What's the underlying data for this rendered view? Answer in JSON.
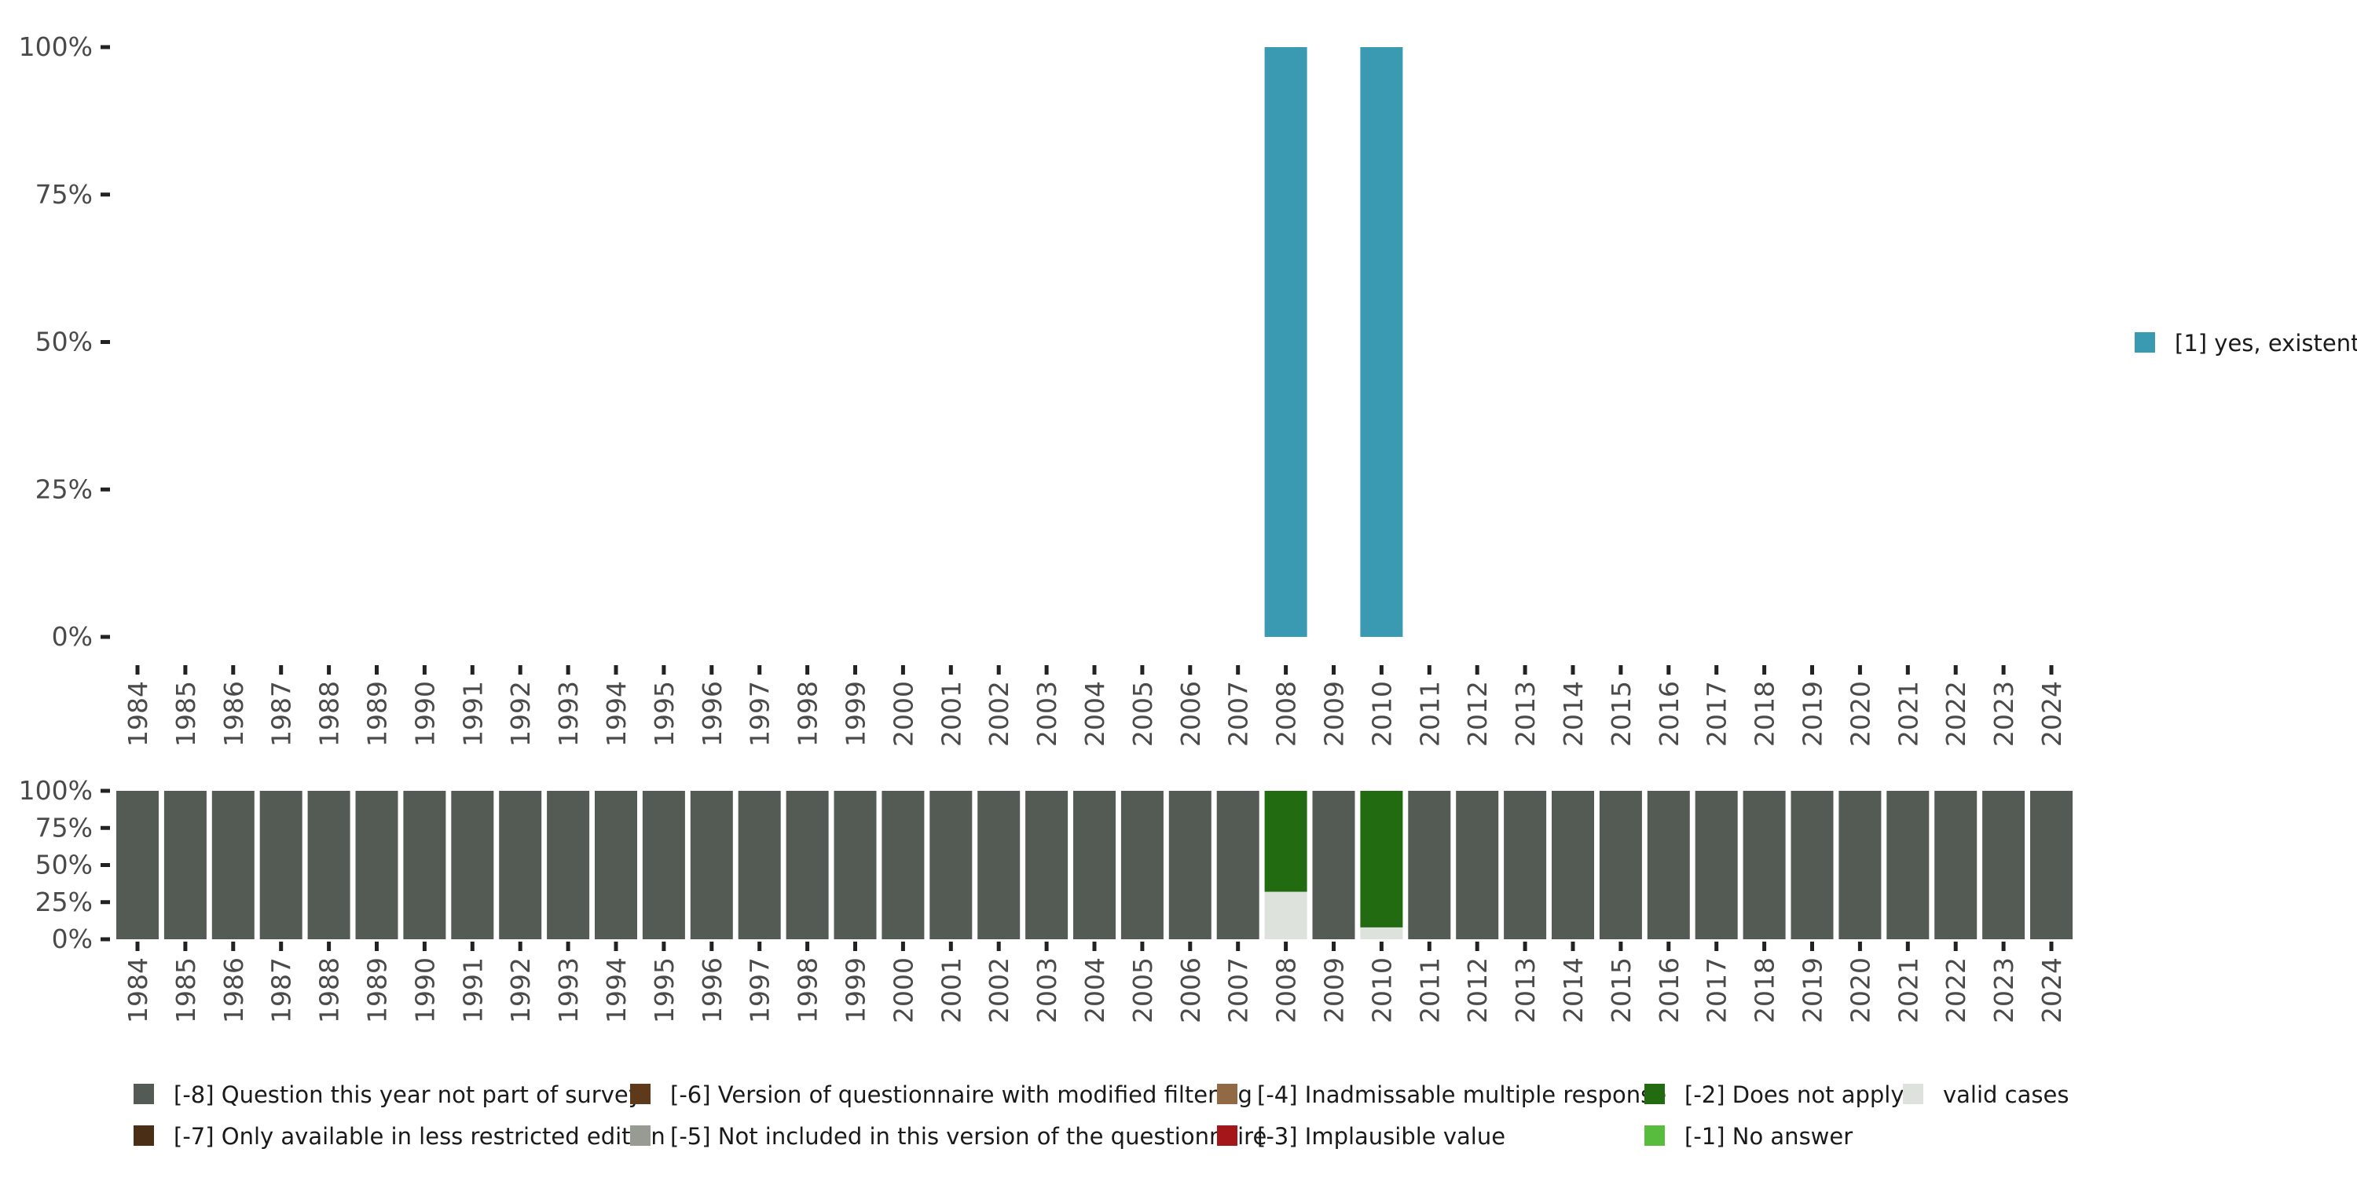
{
  "chart_data": [
    {
      "type": "bar",
      "title": "",
      "xlabel": "",
      "ylabel": "",
      "categories": [
        "1984",
        "1985",
        "1986",
        "1987",
        "1988",
        "1989",
        "1990",
        "1991",
        "1992",
        "1993",
        "1994",
        "1995",
        "1996",
        "1997",
        "1998",
        "1999",
        "2000",
        "2001",
        "2002",
        "2003",
        "2004",
        "2005",
        "2006",
        "2007",
        "2008",
        "2009",
        "2010",
        "2011",
        "2012",
        "2013",
        "2014",
        "2015",
        "2016",
        "2017",
        "2018",
        "2019",
        "2020",
        "2021",
        "2022",
        "2023",
        "2024"
      ],
      "y_ticks": [
        "0%",
        "25%",
        "50%",
        "75%",
        "100%"
      ],
      "ylim": [
        0,
        100
      ],
      "grid": false,
      "legend_position": "right",
      "series": [
        {
          "name": "[1] yes, existent",
          "color": "#3a9ab2",
          "values": {
            "2008": 100,
            "2010": 100
          }
        }
      ]
    },
    {
      "type": "bar",
      "stacked": true,
      "title": "",
      "xlabel": "",
      "ylabel": "",
      "categories": [
        "1984",
        "1985",
        "1986",
        "1987",
        "1988",
        "1989",
        "1990",
        "1991",
        "1992",
        "1993",
        "1994",
        "1995",
        "1996",
        "1997",
        "1998",
        "1999",
        "2000",
        "2001",
        "2002",
        "2003",
        "2004",
        "2005",
        "2006",
        "2007",
        "2008",
        "2009",
        "2010",
        "2011",
        "2012",
        "2013",
        "2014",
        "2015",
        "2016",
        "2017",
        "2018",
        "2019",
        "2020",
        "2021",
        "2022",
        "2023",
        "2024"
      ],
      "y_ticks": [
        "0%",
        "25%",
        "50%",
        "75%",
        "100%"
      ],
      "ylim": [
        0,
        100
      ],
      "grid": false,
      "legend_position": "bottom",
      "series": [
        {
          "name": "valid cases",
          "color": "#dde2dc",
          "values": {
            "2008": 32,
            "2010": 8
          }
        },
        {
          "name": "[-2] Does not apply",
          "color": "#226b10",
          "values": {
            "2008": 68,
            "2010": 92
          }
        },
        {
          "name": "[-8] Question this year not part of survey",
          "color": "#545b54",
          "values": {
            "1984": 100,
            "1985": 100,
            "1986": 100,
            "1987": 100,
            "1988": 100,
            "1989": 100,
            "1990": 100,
            "1991": 100,
            "1992": 100,
            "1993": 100,
            "1994": 100,
            "1995": 100,
            "1996": 100,
            "1997": 100,
            "1998": 100,
            "1999": 100,
            "2000": 100,
            "2001": 100,
            "2002": 100,
            "2003": 100,
            "2004": 100,
            "2005": 100,
            "2006": 100,
            "2007": 100,
            "2009": 100,
            "2011": 100,
            "2012": 100,
            "2013": 100,
            "2014": 100,
            "2015": 100,
            "2016": 100,
            "2017": 100,
            "2018": 100,
            "2019": 100,
            "2020": 100,
            "2021": 100,
            "2022": 100,
            "2023": 100,
            "2024": 100
          }
        }
      ],
      "legend": [
        {
          "label": "[-8] Question this year not part of survey",
          "color": "#545b54"
        },
        {
          "label": "[-7] Only available in less restricted edition",
          "color": "#4a2e16"
        },
        {
          "label": "[-6] Version of questionnaire with modified filtering",
          "color": "#5e3a1a"
        },
        {
          "label": "[-5] Not included in this version of the questionnaire",
          "color": "#989b94"
        },
        {
          "label": "[-4] Inadmissable multiple response",
          "color": "#916945"
        },
        {
          "label": "[-3] Implausible value",
          "color": "#a5161a"
        },
        {
          "label": "[-2] Does not apply",
          "color": "#226b10"
        },
        {
          "label": "[-1] No answer",
          "color": "#58bd3f"
        },
        {
          "label": "valid cases",
          "color": "#dde2dc"
        }
      ]
    }
  ]
}
